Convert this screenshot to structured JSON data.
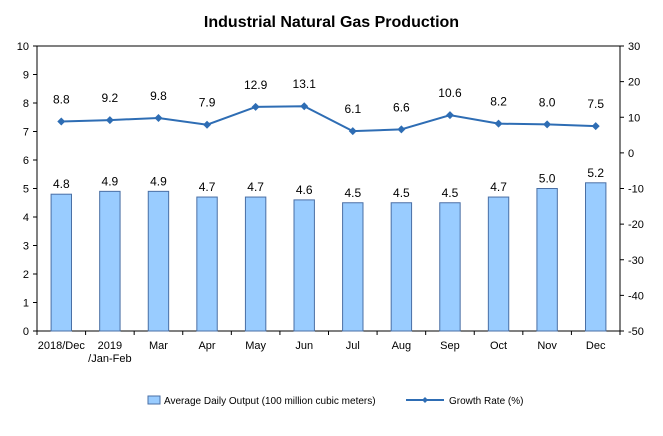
{
  "chart_data": {
    "type": "bar",
    "title": "Industrial Natural Gas Production",
    "categories": [
      "2018/Dec",
      "2019\n/Jan-Feb",
      "Mar",
      "Apr",
      "May",
      "Jun",
      "Jul",
      "Aug",
      "Sep",
      "Oct",
      "Nov",
      "Dec"
    ],
    "series": [
      {
        "name": "Average Daily Output (100 million cubic meters)",
        "type": "bar",
        "axis": "left",
        "values": [
          4.8,
          4.9,
          4.9,
          4.7,
          4.7,
          4.6,
          4.5,
          4.5,
          4.5,
          4.7,
          5.0,
          5.2
        ],
        "labels": [
          "4.8",
          "4.9",
          "4.9",
          "4.7",
          "4.7",
          "4.6",
          "4.5",
          "4.5",
          "4.5",
          "4.7",
          "5.0",
          "5.2"
        ]
      },
      {
        "name": "Growth Rate (%)",
        "type": "line",
        "axis": "right",
        "values": [
          8.8,
          9.2,
          9.8,
          7.9,
          12.9,
          13.1,
          6.1,
          6.6,
          10.6,
          8.2,
          8.0,
          7.5
        ],
        "labels": [
          "8.8",
          "9.2",
          "9.8",
          "7.9",
          "12.9",
          "13.1",
          "6.1",
          "6.6",
          "10.6",
          "8.2",
          "8.0",
          "7.5"
        ]
      }
    ],
    "left_axis": {
      "min": 0,
      "max": 10,
      "step": 1
    },
    "right_axis": {
      "min": -50,
      "max": 30,
      "step": 10
    },
    "grid": false,
    "legend_position": "bottom",
    "colors": {
      "bar_fill": "#99ccff",
      "bar_stroke": "#4a6fa5",
      "line": "#2e6db4"
    }
  }
}
